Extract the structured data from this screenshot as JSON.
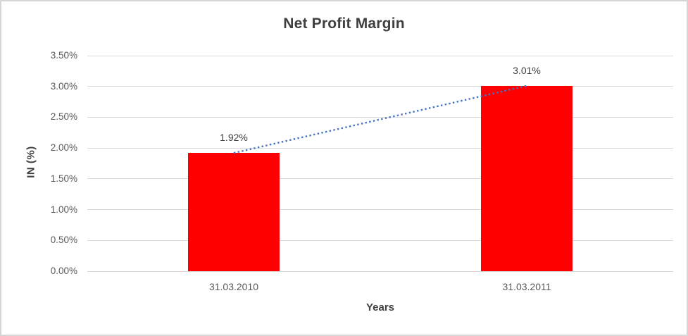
{
  "chart_data": {
    "type": "bar",
    "title": "Net Profit Margin",
    "xlabel": "Years",
    "ylabel": "IN (%)",
    "categories": [
      "31.03.2010",
      "31.03.2011"
    ],
    "values": [
      1.92,
      3.01
    ],
    "data_labels": [
      "1.92%",
      "3.01%"
    ],
    "ylim": [
      0,
      3.5
    ],
    "ytick_step": 0.5,
    "ytick_labels": [
      "0.00%",
      "0.50%",
      "1.00%",
      "1.50%",
      "2.00%",
      "2.50%",
      "3.00%",
      "3.50%"
    ],
    "grid": true,
    "legend": "none",
    "colors": {
      "bar": "#FF0000",
      "trendline": "#4472C4",
      "gridline": "#D9D9D9",
      "title_text": "#404040",
      "tick_text": "#595959"
    },
    "trendline": {
      "type": "linear",
      "style": "dotted",
      "connects": "bar tops (31.03.2010 -> 31.03.2011)"
    }
  }
}
